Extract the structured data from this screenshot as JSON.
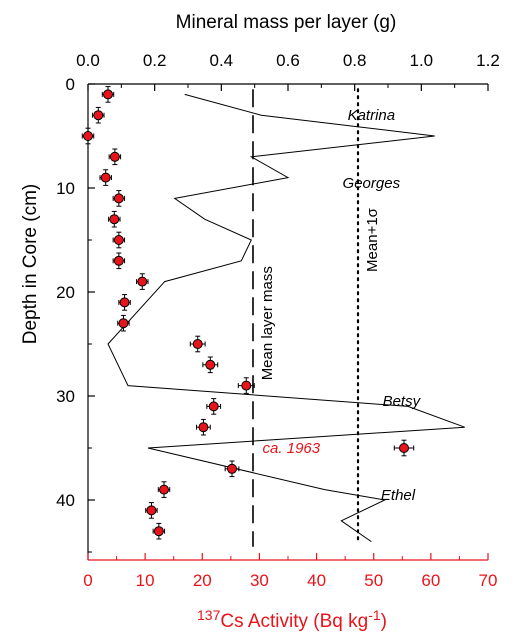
{
  "colors": {
    "cesium": "#e8141b",
    "axis": "#000000",
    "marker_fill": "#e8141b",
    "marker_edge": "#000000"
  },
  "chart_data": {
    "type": "scatter",
    "top_axis": {
      "label": "Mineral mass per layer (g)",
      "ticks": [
        "0.0",
        "0.2",
        "0.4",
        "0.6",
        "0.8",
        "1.0",
        "1.2"
      ],
      "range": [
        0,
        1.2
      ]
    },
    "bottom_axis": {
      "label_sup": "137",
      "label_main": "Cs Activity (Bq kg",
      "label_exp": "-1",
      "label_close": ")",
      "ticks": [
        "0",
        "10",
        "20",
        "30",
        "40",
        "50",
        "60",
        "70"
      ],
      "range": [
        0,
        70
      ],
      "color": "#e8141b"
    },
    "y_axis": {
      "label": "Depth in Core (cm)",
      "ticks": [
        "0",
        "10",
        "20",
        "30",
        "40"
      ],
      "range": [
        0,
        45
      ],
      "inverted": true
    },
    "cesium_series": {
      "axis": "bottom",
      "points": [
        {
          "x": 3.5,
          "y": 1,
          "xerr": 1.0,
          "yerr": 1
        },
        {
          "x": 1.8,
          "y": 3,
          "xerr": 1.0,
          "yerr": 1
        },
        {
          "x": 0.0,
          "y": 5,
          "xerr": 1.0,
          "yerr": 1
        },
        {
          "x": 4.7,
          "y": 7,
          "xerr": 1.0,
          "yerr": 1
        },
        {
          "x": 3.1,
          "y": 9,
          "xerr": 1.0,
          "yerr": 1
        },
        {
          "x": 5.4,
          "y": 11,
          "xerr": 1.0,
          "yerr": 1
        },
        {
          "x": 4.6,
          "y": 13,
          "xerr": 1.0,
          "yerr": 1
        },
        {
          "x": 5.4,
          "y": 15,
          "xerr": 1.0,
          "yerr": 1
        },
        {
          "x": 5.4,
          "y": 17,
          "xerr": 1.0,
          "yerr": 1
        },
        {
          "x": 9.5,
          "y": 19,
          "xerr": 1.0,
          "yerr": 1
        },
        {
          "x": 6.4,
          "y": 21,
          "xerr": 1.0,
          "yerr": 1
        },
        {
          "x": 6.2,
          "y": 23,
          "xerr": 1.0,
          "yerr": 1
        },
        {
          "x": 19.2,
          "y": 25,
          "xerr": 1.3,
          "yerr": 1
        },
        {
          "x": 21.4,
          "y": 27,
          "xerr": 1.3,
          "yerr": 1
        },
        {
          "x": 27.7,
          "y": 29,
          "xerr": 1.4,
          "yerr": 1
        },
        {
          "x": 22.0,
          "y": 31,
          "xerr": 1.2,
          "yerr": 1
        },
        {
          "x": 20.2,
          "y": 33,
          "xerr": 1.2,
          "yerr": 1
        },
        {
          "x": 55.3,
          "y": 35,
          "xerr": 1.7,
          "yerr": 1
        },
        {
          "x": 25.2,
          "y": 37,
          "xerr": 1.2,
          "yerr": 1
        },
        {
          "x": 13.3,
          "y": 39,
          "xerr": 1.0,
          "yerr": 1
        },
        {
          "x": 11.1,
          "y": 41,
          "xerr": 1.0,
          "yerr": 1
        },
        {
          "x": 12.4,
          "y": 43,
          "xerr": 1.0,
          "yerr": 1
        }
      ]
    },
    "mass_series": {
      "axis": "top",
      "points": [
        {
          "x": 0.29,
          "y": 1
        },
        {
          "x": 0.52,
          "y": 3
        },
        {
          "x": 1.04,
          "y": 5
        },
        {
          "x": 0.49,
          "y": 7
        },
        {
          "x": 0.6,
          "y": 9
        },
        {
          "x": 0.26,
          "y": 11
        },
        {
          "x": 0.35,
          "y": 13
        },
        {
          "x": 0.49,
          "y": 15
        },
        {
          "x": 0.46,
          "y": 17
        },
        {
          "x": 0.23,
          "y": 19
        },
        {
          "x": 0.06,
          "y": 25
        },
        {
          "x": 0.12,
          "y": 29
        },
        {
          "x": 0.96,
          "y": 31
        },
        {
          "x": 1.13,
          "y": 33
        },
        {
          "x": 0.18,
          "y": 35
        },
        {
          "x": 0.71,
          "y": 39
        },
        {
          "x": 0.89,
          "y": 40
        },
        {
          "x": 0.76,
          "y": 42
        },
        {
          "x": 0.85,
          "y": 44
        }
      ]
    },
    "reference_lines": [
      {
        "label": "Mean layer mass",
        "x": 0.495,
        "y_range": [
          0.5,
          44.5
        ],
        "style": "dashed"
      },
      {
        "label": "Mean+1σ",
        "x": 0.81,
        "y_range": [
          0.5,
          44
        ],
        "style": "dotted"
      }
    ],
    "annotations": [
      {
        "text": "Katrina",
        "x": 0.85,
        "y": 3,
        "style": "italic",
        "color": "#000000"
      },
      {
        "text": "Georges",
        "x": 0.85,
        "y": 9.5,
        "style": "italic",
        "color": "#000000"
      },
      {
        "text": "Betsy",
        "x": 0.94,
        "y": 30.5,
        "style": "italic",
        "color": "#000000"
      },
      {
        "text": "ca. 1963",
        "x": 0.61,
        "y": 35,
        "style": "italic",
        "color": "#e8141b"
      },
      {
        "text": "Ethel",
        "x": 0.93,
        "y": 39.5,
        "style": "italic",
        "color": "#000000"
      }
    ]
  }
}
